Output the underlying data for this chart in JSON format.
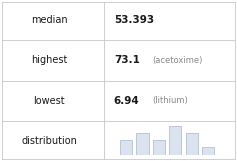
{
  "rows": [
    {
      "label": "median",
      "value": "53.393",
      "note": ""
    },
    {
      "label": "highest",
      "value": "73.1",
      "note": "(acetoxime)"
    },
    {
      "label": "lowest",
      "value": "6.94",
      "note": "(lithium)"
    },
    {
      "label": "distribution",
      "value": "",
      "note": ""
    }
  ],
  "hist_bars": [
    2,
    3,
    2,
    4,
    3,
    1
  ],
  "bar_color": "#dce3f0",
  "bar_edge_color": "#aab4cc",
  "grid_color": "#c8c8c8",
  "text_color": "#1a1a1a",
  "note_color": "#888888",
  "bg_color": "#ffffff",
  "value_fontsize": 7.5,
  "label_fontsize": 7.0,
  "note_fontsize": 6.0,
  "col_split": 0.44,
  "figwidth": 2.37,
  "figheight": 1.61,
  "dpi": 100
}
